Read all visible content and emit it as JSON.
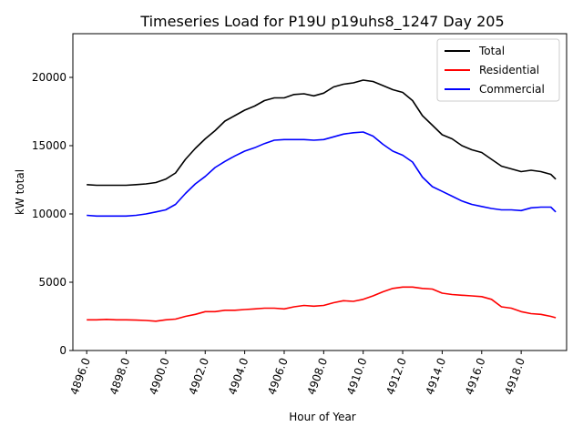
{
  "chart_data": {
    "type": "line",
    "title": "Timeseries Load for P19U p19uhs8_1247  Day 205",
    "xlabel": "Hour of Year",
    "ylabel": "kW total",
    "xlim": [
      4895.3,
      4920.3
    ],
    "ylim": [
      0,
      23200
    ],
    "xticks": [
      4896,
      4898,
      4900,
      4902,
      4904,
      4906,
      4908,
      4910,
      4912,
      4914,
      4916,
      4918
    ],
    "xtick_labels": [
      "4896.0",
      "4898.0",
      "4900.0",
      "4902.0",
      "4904.0",
      "4906.0",
      "4908.0",
      "4910.0",
      "4912.0",
      "4914.0",
      "4916.0",
      "4918.0"
    ],
    "yticks": [
      0,
      5000,
      10000,
      15000,
      20000
    ],
    "ytick_labels": [
      "0",
      "5000",
      "10000",
      "15000",
      "20000"
    ],
    "legend_position": "top-right",
    "x": [
      4896.0,
      4896.5,
      4897.0,
      4897.5,
      4898.0,
      4898.5,
      4899.0,
      4899.5,
      4900.0,
      4900.5,
      4901.0,
      4901.5,
      4902.0,
      4902.5,
      4903.0,
      4903.5,
      4904.0,
      4904.5,
      4905.0,
      4905.5,
      4906.0,
      4906.5,
      4907.0,
      4907.5,
      4908.0,
      4908.5,
      4909.0,
      4909.5,
      4910.0,
      4910.5,
      4911.0,
      4911.5,
      4912.0,
      4912.5,
      4913.0,
      4913.5,
      4914.0,
      4914.5,
      4915.0,
      4915.5,
      4916.0,
      4916.5,
      4917.0,
      4917.5,
      4918.0,
      4918.5,
      4919.0,
      4919.5,
      4919.75
    ],
    "series": [
      {
        "name": "Total",
        "color": "#000000",
        "values": [
          12150,
          12100,
          12100,
          12100,
          12100,
          12150,
          12200,
          12300,
          12550,
          13000,
          14000,
          14800,
          15500,
          16100,
          16800,
          17200,
          17600,
          17900,
          18300,
          18500,
          18500,
          18750,
          18800,
          18650,
          18850,
          19300,
          19500,
          19600,
          19800,
          19700,
          19400,
          19100,
          18900,
          18300,
          17200,
          16500,
          15800,
          15500,
          15000,
          14700,
          14500,
          14000,
          13500,
          13300,
          13100,
          13200,
          13100,
          12900,
          12550
        ]
      },
      {
        "name": "Residential",
        "color": "#ff0000",
        "values": [
          2250,
          2250,
          2280,
          2250,
          2250,
          2230,
          2200,
          2150,
          2250,
          2300,
          2500,
          2650,
          2850,
          2850,
          2950,
          2950,
          3000,
          3050,
          3100,
          3100,
          3050,
          3200,
          3300,
          3250,
          3300,
          3500,
          3650,
          3600,
          3750,
          4000,
          4300,
          4550,
          4650,
          4650,
          4550,
          4500,
          4200,
          4100,
          4050,
          4000,
          3950,
          3750,
          3200,
          3100,
          2850,
          2700,
          2650,
          2500,
          2400
        ]
      },
      {
        "name": "Commercial",
        "color": "#0000ff",
        "values": [
          9900,
          9850,
          9850,
          9850,
          9850,
          9900,
          10000,
          10150,
          10300,
          10700,
          11500,
          12200,
          12750,
          13400,
          13850,
          14250,
          14600,
          14850,
          15150,
          15400,
          15450,
          15450,
          15450,
          15400,
          15450,
          15650,
          15850,
          15950,
          16000,
          15700,
          15100,
          14600,
          14300,
          13800,
          12700,
          12000,
          11650,
          11300,
          10950,
          10700,
          10550,
          10400,
          10300,
          10300,
          10250,
          10450,
          10500,
          10500,
          10150
        ]
      }
    ]
  }
}
